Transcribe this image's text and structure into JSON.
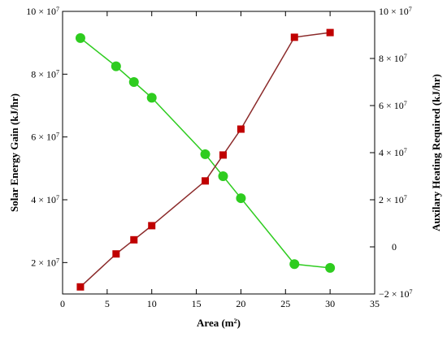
{
  "chart_data": {
    "type": "line",
    "xlabel": "Area (m",
    "xlabel_sup": "2",
    "xlabel_close": ")",
    "ylabel_left": "Solar Energy Gain (kJ/hr)",
    "ylabel_right": "Auxilary Heating Required (kJ/hr)",
    "xlim": [
      0,
      35
    ],
    "ylim_left": [
      10000000,
      100000000
    ],
    "ylim_right": [
      -20000000,
      100000000
    ],
    "x_ticks": [
      "0",
      "5",
      "10",
      "15",
      "20",
      "25",
      "30",
      "35"
    ],
    "x_tick_values": [
      0,
      5,
      10,
      15,
      20,
      25,
      30,
      35
    ],
    "left_ticks": [
      {
        "value": 20000000,
        "mant": "2 × 10",
        "exp": "7"
      },
      {
        "value": 40000000,
        "mant": "4 × 10",
        "exp": "7"
      },
      {
        "value": 60000000,
        "mant": "6 × 10",
        "exp": "7"
      },
      {
        "value": 80000000,
        "mant": "8 × 10",
        "exp": "7"
      },
      {
        "value": 100000000,
        "mant": "10 × 10",
        "exp": "7"
      }
    ],
    "right_ticks": [
      {
        "value": -20000000,
        "mant": "−2 × 10",
        "exp": "7"
      },
      {
        "value": 0,
        "mant": "0",
        "exp": ""
      },
      {
        "value": 20000000,
        "mant": "2 × 10",
        "exp": "7"
      },
      {
        "value": 40000000,
        "mant": "4 × 10",
        "exp": "7"
      },
      {
        "value": 60000000,
        "mant": "6 × 10",
        "exp": "7"
      },
      {
        "value": 80000000,
        "mant": "8 × 10",
        "exp": "7"
      },
      {
        "value": 100000000,
        "mant": "10 × 10",
        "exp": "7"
      }
    ],
    "series": [
      {
        "axis": "left",
        "color": "#2ecc1f",
        "marker": "circle",
        "x": [
          2,
          6,
          8,
          10,
          16,
          18,
          20,
          26,
          30
        ],
        "y": [
          91500000,
          82500000,
          77500000,
          72500000,
          54500000,
          47500000,
          40500000,
          19500000,
          18300000
        ]
      },
      {
        "axis": "right",
        "color": "#c00000",
        "line_color": "#8b2a2a",
        "marker": "square",
        "x": [
          2,
          6,
          8,
          10,
          16,
          18,
          20,
          26,
          30
        ],
        "y": [
          -17000000,
          -3000000,
          3000000,
          9000000,
          28000000,
          39000000,
          50000000,
          89000000,
          91000000
        ]
      }
    ]
  }
}
